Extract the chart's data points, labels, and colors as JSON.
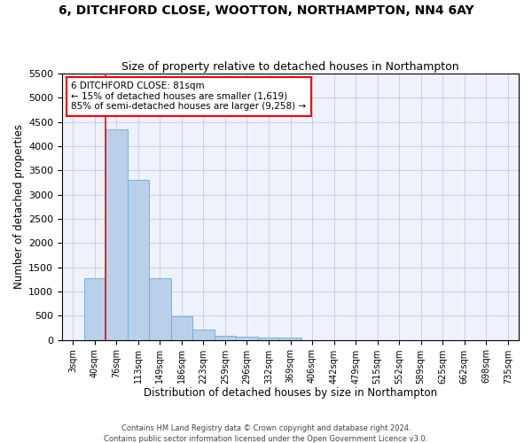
{
  "title_line1": "6, DITCHFORD CLOSE, WOOTTON, NORTHAMPTON, NN4 6AY",
  "title_line2": "Size of property relative to detached houses in Northampton",
  "xlabel": "Distribution of detached houses by size in Northampton",
  "ylabel": "Number of detached properties",
  "bar_color": "#b8d0ea",
  "bar_edge_color": "#6aaad4",
  "categories": [
    "3sqm",
    "40sqm",
    "76sqm",
    "113sqm",
    "149sqm",
    "186sqm",
    "223sqm",
    "259sqm",
    "296sqm",
    "332sqm",
    "369sqm",
    "406sqm",
    "442sqm",
    "479sqm",
    "515sqm",
    "552sqm",
    "589sqm",
    "625sqm",
    "662sqm",
    "698sqm",
    "735sqm"
  ],
  "values": [
    0,
    1270,
    4350,
    3300,
    1280,
    490,
    210,
    90,
    75,
    55,
    55,
    0,
    0,
    0,
    0,
    0,
    0,
    0,
    0,
    0,
    0
  ],
  "ylim": [
    0,
    5500
  ],
  "yticks": [
    0,
    500,
    1000,
    1500,
    2000,
    2500,
    3000,
    3500,
    4000,
    4500,
    5000,
    5500
  ],
  "vline_x_idx": 2,
  "annotation_title": "6 DITCHFORD CLOSE: 81sqm",
  "annotation_line1": "← 15% of detached houses are smaller (1,619)",
  "annotation_line2": "85% of semi-detached houses are larger (9,258) →",
  "annotation_box_color": "white",
  "annotation_edge_color": "red",
  "vline_color": "red",
  "footer_line1": "Contains HM Land Registry data © Crown copyright and database right 2024.",
  "footer_line2": "Contains public sector information licensed under the Open Government Licence v3.0.",
  "bg_color": "#eef2fb",
  "grid_color": "#c8cfe8"
}
